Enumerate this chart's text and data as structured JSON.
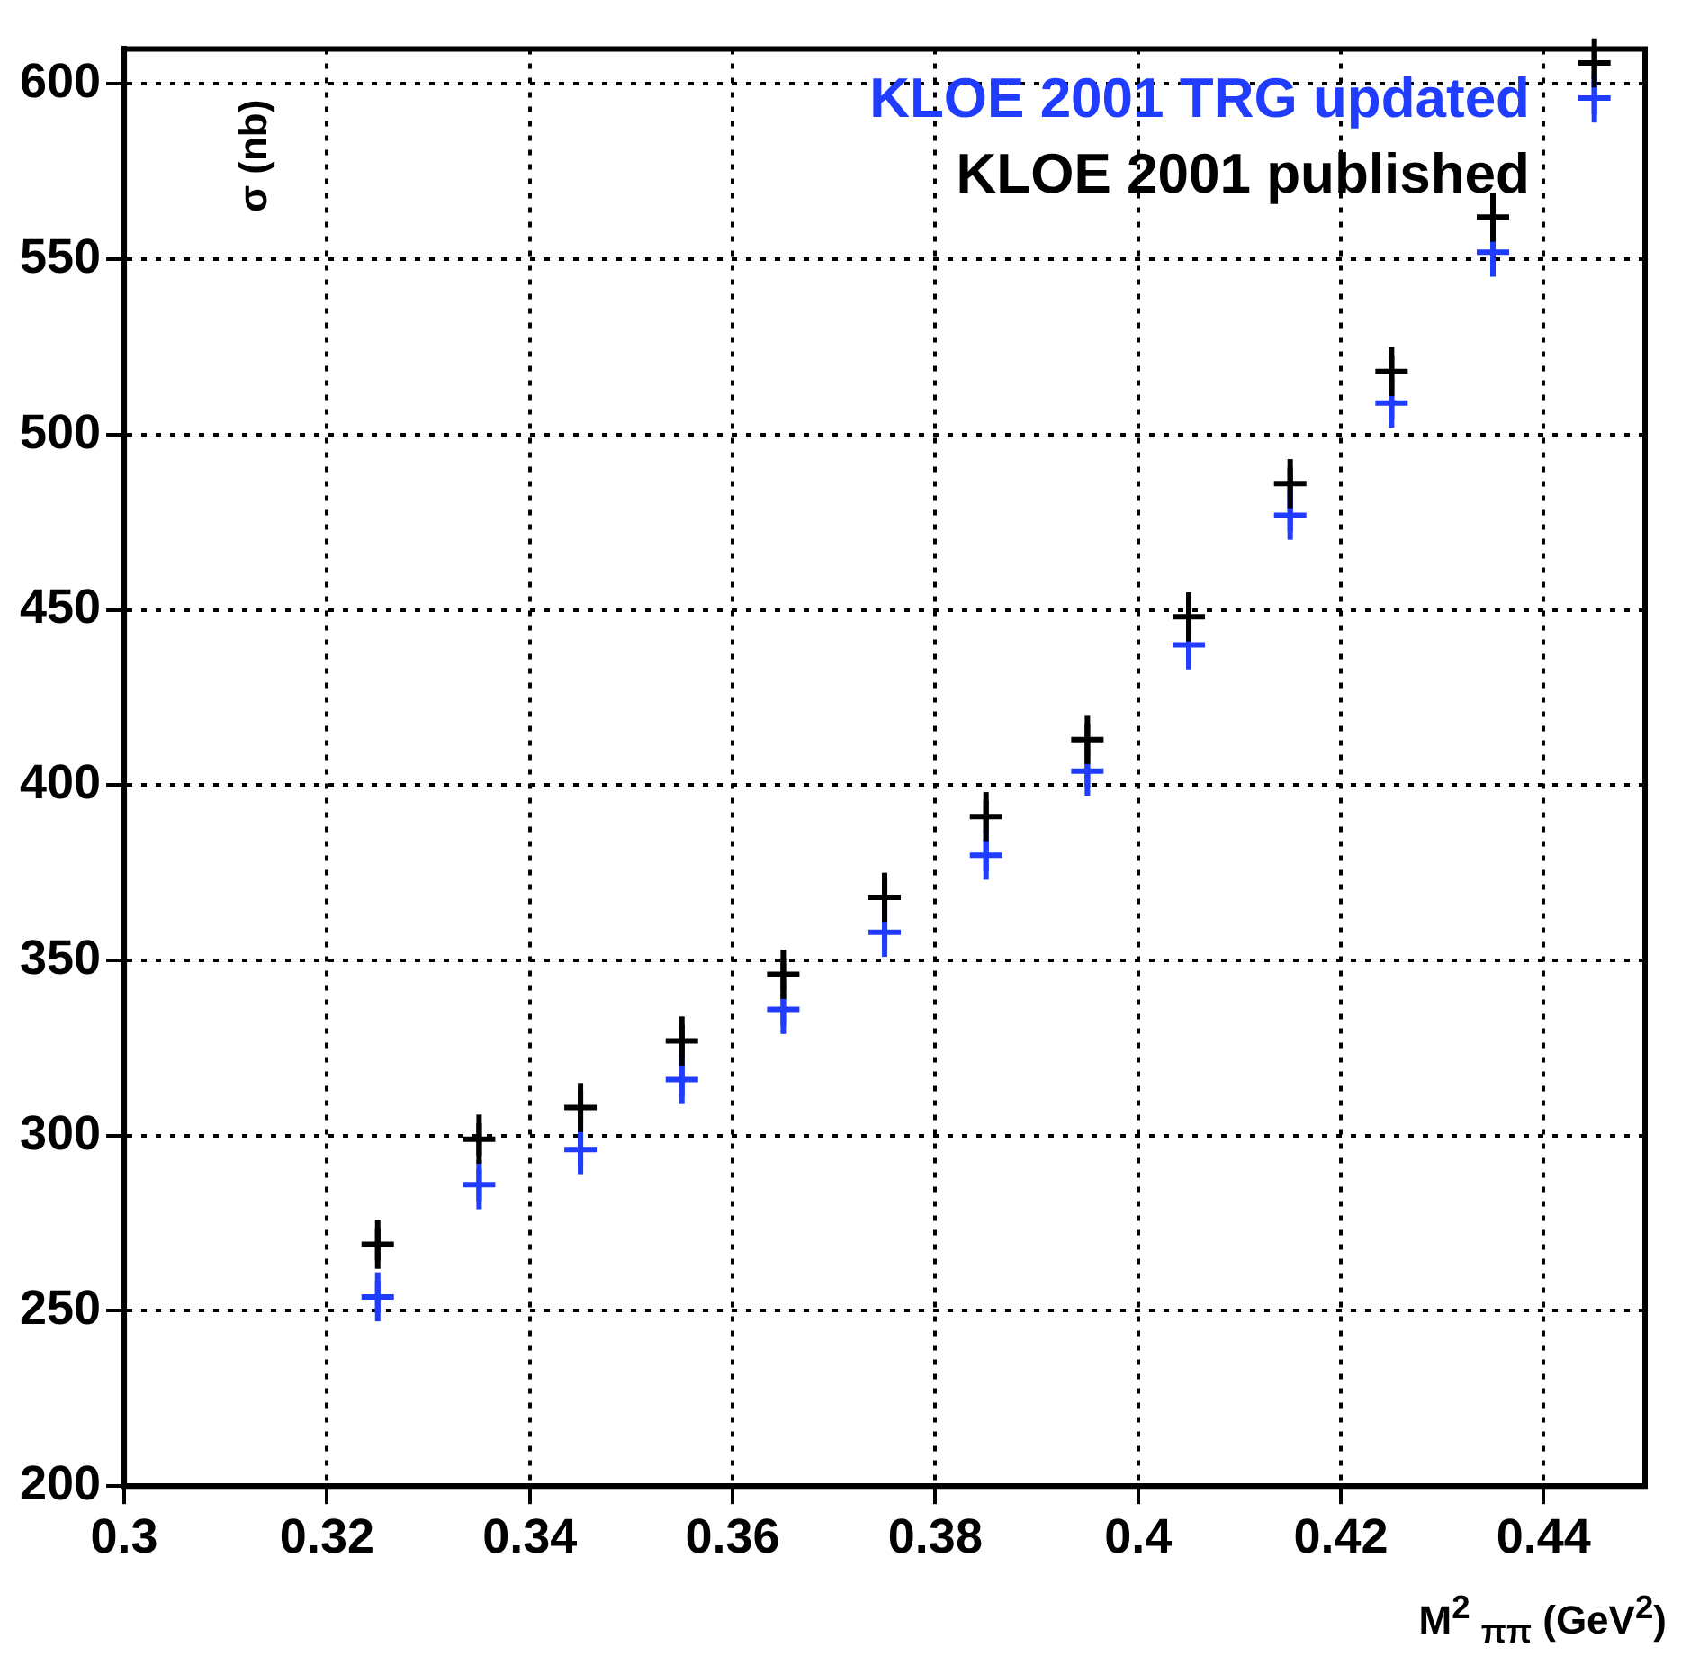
{
  "chart_data": {
    "type": "scatter",
    "xlabel": "M$^{2}$ $_{ππ}$ (GeV$^{2}$)",
    "ylabel": "σ (nb)",
    "x": [
      0.325,
      0.335,
      0.345,
      0.355,
      0.365,
      0.375,
      0.385,
      0.395,
      0.405,
      0.415,
      0.425,
      0.435,
      0.445
    ],
    "series": [
      {
        "name": "KLOE 2001 TRG updated",
        "color": "#1f3cff",
        "values": [
          254,
          286,
          296,
          316,
          336,
          358,
          380,
          404,
          440,
          477,
          509,
          552,
          596
        ],
        "errors": [
          7,
          7,
          7,
          7,
          7,
          7,
          7,
          7,
          7,
          7,
          7,
          7,
          7
        ]
      },
      {
        "name": "KLOE 2001 published",
        "color": "#000000",
        "values": [
          269,
          299,
          308,
          327,
          346,
          368,
          391,
          413,
          448,
          486,
          518,
          562,
          606
        ],
        "errors": [
          7,
          7,
          7,
          7,
          7,
          7,
          7,
          7,
          7,
          7,
          7,
          7,
          7
        ]
      }
    ],
    "xlim": [
      0.3,
      0.45
    ],
    "xticks": [
      {
        "value": 0.3,
        "label": "0.3"
      },
      0.32,
      0.34,
      0.36,
      0.38,
      {
        "value": 0.4,
        "label": "0.4"
      },
      0.42,
      0.44
    ],
    "ylim": [
      200,
      610
    ],
    "yticks": [
      200,
      250,
      300,
      350,
      400,
      450,
      500,
      550,
      600
    ],
    "grid": true,
    "legend": "top right",
    "marker": "cross"
  }
}
